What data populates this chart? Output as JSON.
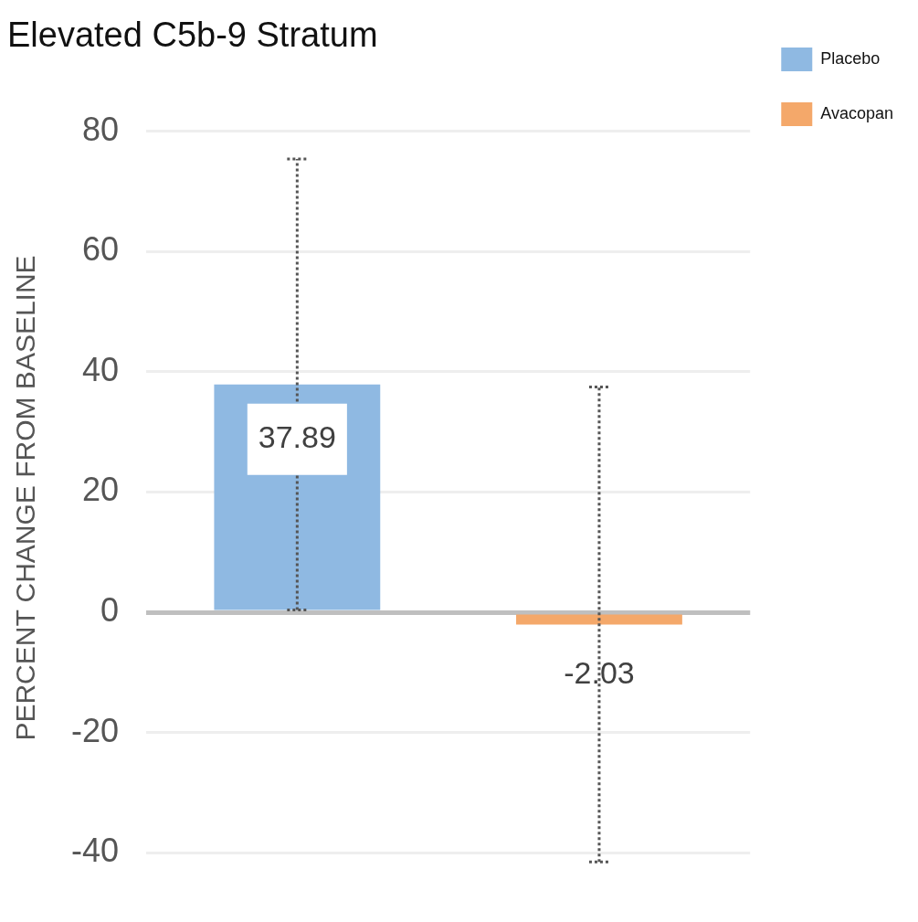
{
  "chart_data": {
    "type": "bar",
    "title": "Elevated C5b-9 Stratum",
    "ylabel": "PERCENT CHANGE FROM BASELINE",
    "categories": [
      null,
      null
    ],
    "series": [
      {
        "name": "Placebo",
        "color": "#8fb9e2",
        "values": [
          37.89,
          null
        ],
        "errors": [
          37.5,
          null
        ]
      },
      {
        "name": "Avacopan",
        "color": "#f4a86a",
        "values": [
          null,
          -2.03
        ],
        "errors": [
          null,
          39.5
        ]
      }
    ],
    "ylim": [
      -42,
      80
    ],
    "yticks": [
      -40,
      -20,
      0,
      20,
      40,
      60,
      80
    ],
    "grid": "y",
    "legend": "top right",
    "data_labels": true
  }
}
